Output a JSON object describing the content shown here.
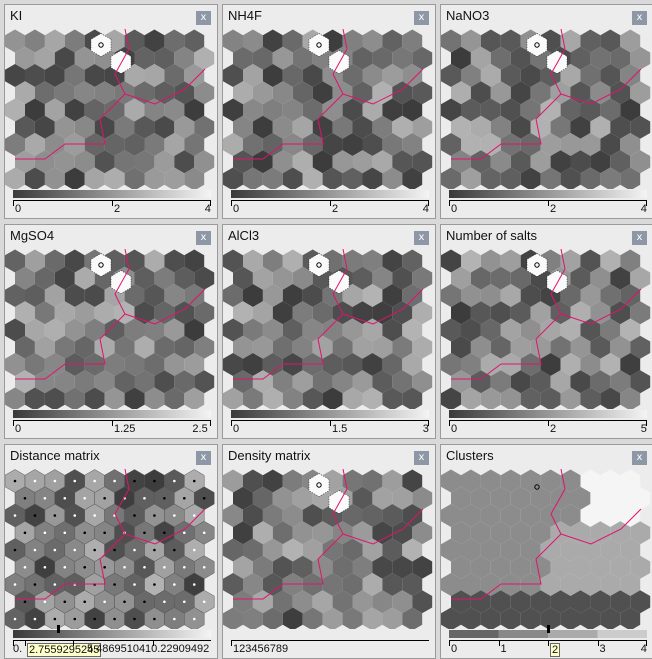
{
  "panels": [
    {
      "title": "KI",
      "ticks": [
        "0",
        "2",
        "4"
      ],
      "special": "overlay"
    },
    {
      "title": "NH4F",
      "ticks": [
        "0",
        "2",
        "4"
      ],
      "special": "overlay"
    },
    {
      "title": "NaNO3",
      "ticks": [
        "0",
        "2",
        "4"
      ],
      "special": "overlay"
    },
    {
      "title": "MgSO4",
      "ticks": [
        "0",
        "1.25",
        "2.5"
      ],
      "special": "overlay"
    },
    {
      "title": "AlCl3",
      "ticks": [
        "0",
        "1.5",
        "3"
      ],
      "special": "overlay"
    },
    {
      "title": "Number of salts",
      "ticks": [
        "0",
        "2",
        "5"
      ],
      "special": "overlay"
    },
    {
      "title": "Distance matrix",
      "ticks": [
        "0.",
        "2.7559295245",
        "5.48695104",
        "10.22909492"
      ],
      "special": "distance"
    },
    {
      "title": "Density matrix",
      "ticks": [
        "123456789"
      ],
      "special": "density"
    },
    {
      "title": "Clusters",
      "ticks": [
        "0",
        "1",
        "2",
        "3",
        "4"
      ],
      "special": "clusters"
    }
  ],
  "close_label": "x",
  "colors": {
    "boundary": "#e0136c",
    "dark": "#404040",
    "light": "#d4d4d4"
  }
}
